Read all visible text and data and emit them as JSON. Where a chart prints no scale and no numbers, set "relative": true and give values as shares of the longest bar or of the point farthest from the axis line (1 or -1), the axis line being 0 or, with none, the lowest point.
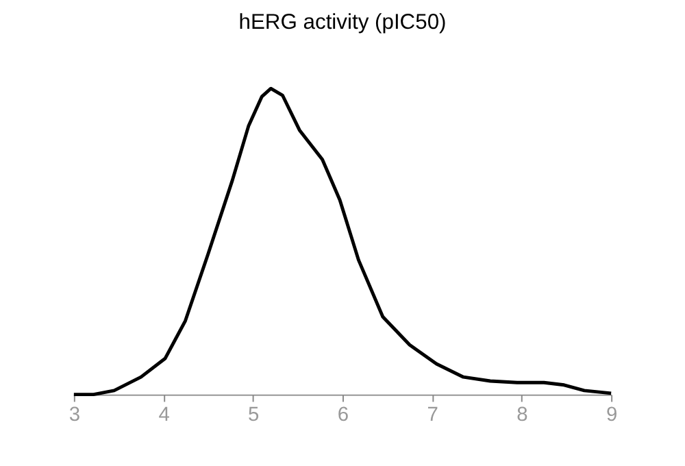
{
  "chart_data": {
    "type": "line",
    "title": "hERG activity (pIC50)",
    "relative": true,
    "xlim": [
      3,
      9
    ],
    "xticks": [
      3,
      4,
      5,
      6,
      7,
      8,
      9
    ],
    "grid": false,
    "legend": false,
    "marker": "none",
    "line_style": "solid",
    "series": [
      {
        "color": "#000000",
        "x": [
          3.0,
          3.22,
          3.45,
          3.75,
          4.02,
          4.245,
          4.5,
          4.77,
          4.95,
          5.1,
          5.2,
          5.33,
          5.52,
          5.775,
          5.97,
          6.18,
          6.45,
          6.75,
          7.05,
          7.35,
          7.65,
          7.95,
          8.25,
          8.475,
          8.7,
          9.0
        ],
        "values": [
          0,
          0,
          0.013,
          0.057,
          0.118,
          0.241,
          0.46,
          0.7,
          0.877,
          0.974,
          1.0,
          0.978,
          0.864,
          0.768,
          0.636,
          0.439,
          0.254,
          0.162,
          0.1,
          0.057,
          0.044,
          0.039,
          0.039,
          0.031,
          0.013,
          0.004
        ]
      }
    ]
  }
}
